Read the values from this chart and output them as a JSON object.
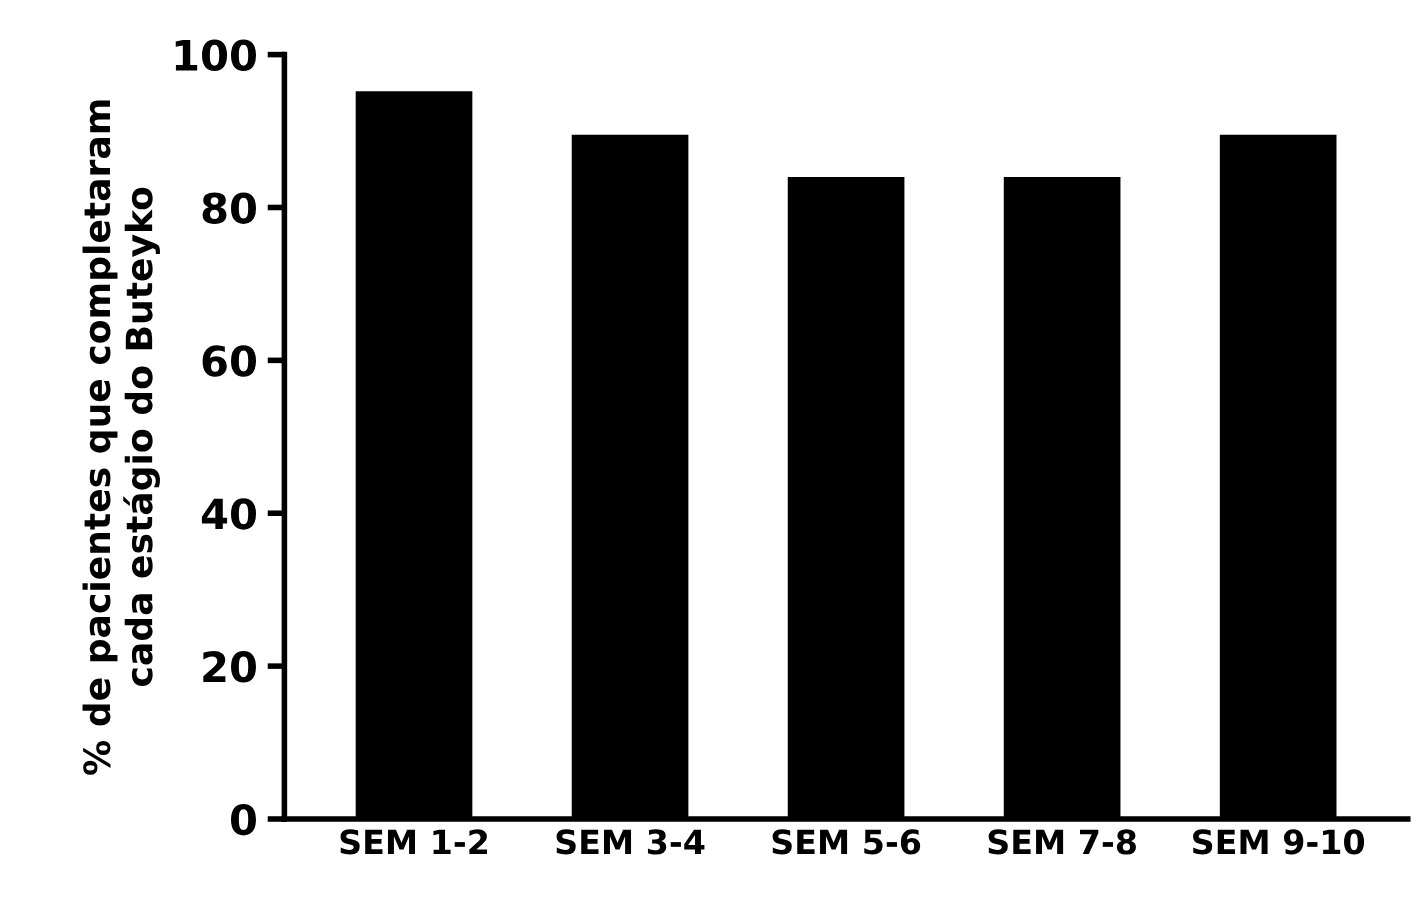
{
  "chart_data": {
    "type": "bar",
    "ylabel": "% de pacientes que completaram\ncada estágio do Buteyko",
    "categories": [
      "SEM 1-2",
      "SEM 3-4",
      "SEM 5-6",
      "SEM 7-8",
      "SEM 9-10"
    ],
    "values": [
      95.2,
      89.5,
      84,
      84,
      89.5
    ],
    "color": "#000000",
    "ylim": [
      0,
      100
    ],
    "yticks": [
      0,
      20,
      40,
      60,
      80,
      100
    ],
    "grid": false
  }
}
